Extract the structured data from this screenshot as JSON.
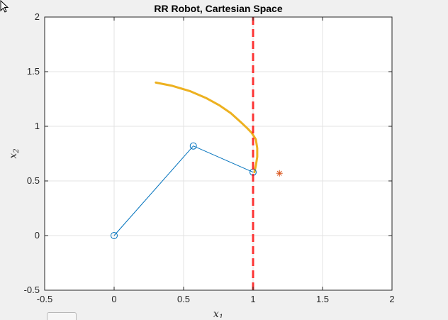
{
  "window": {
    "tab_present": true
  },
  "chart_data": {
    "type": "line",
    "title": "RR Robot, Cartesian Space",
    "xlabel_main": "x",
    "xlabel_sub": "1",
    "ylabel_main": "x",
    "ylabel_sub": "2",
    "xlim": [
      -0.5,
      2
    ],
    "ylim": [
      -0.5,
      2
    ],
    "xticks": [
      -0.5,
      0,
      0.5,
      1,
      1.5,
      2
    ],
    "yticks": [
      -0.5,
      0,
      0.5,
      1,
      1.5,
      2
    ],
    "xtick_labels": [
      "-0.5",
      "0",
      "0.5",
      "1",
      "1.5",
      "2"
    ],
    "ytick_labels": [
      "-0.5",
      "0",
      "0.5",
      "1",
      "1.5",
      "2"
    ],
    "grid": true,
    "series": [
      {
        "kind": "trajectory",
        "color": "#edb120",
        "x": [
          0.3,
          0.42,
          0.55,
          0.66,
          0.76,
          0.84,
          0.91,
          0.96,
          0.99,
          1.02,
          1.03,
          1.03,
          1.02,
          1.01
        ],
        "y": [
          1.4,
          1.37,
          1.32,
          1.26,
          1.19,
          1.12,
          1.04,
          0.98,
          0.94,
          0.88,
          0.8,
          0.72,
          0.64,
          0.58
        ]
      },
      {
        "kind": "robot-links",
        "color": "#0072bd",
        "x": [
          0,
          0.57,
          1.0
        ],
        "y": [
          0,
          0.82,
          0.58
        ]
      },
      {
        "kind": "target",
        "color": "#d95319",
        "x": [
          1.19
        ],
        "y": [
          0.57
        ]
      },
      {
        "kind": "boundary",
        "color": "#ff0000",
        "x": [
          1.0,
          1.0
        ],
        "y": [
          -0.5,
          2.0
        ]
      }
    ]
  }
}
